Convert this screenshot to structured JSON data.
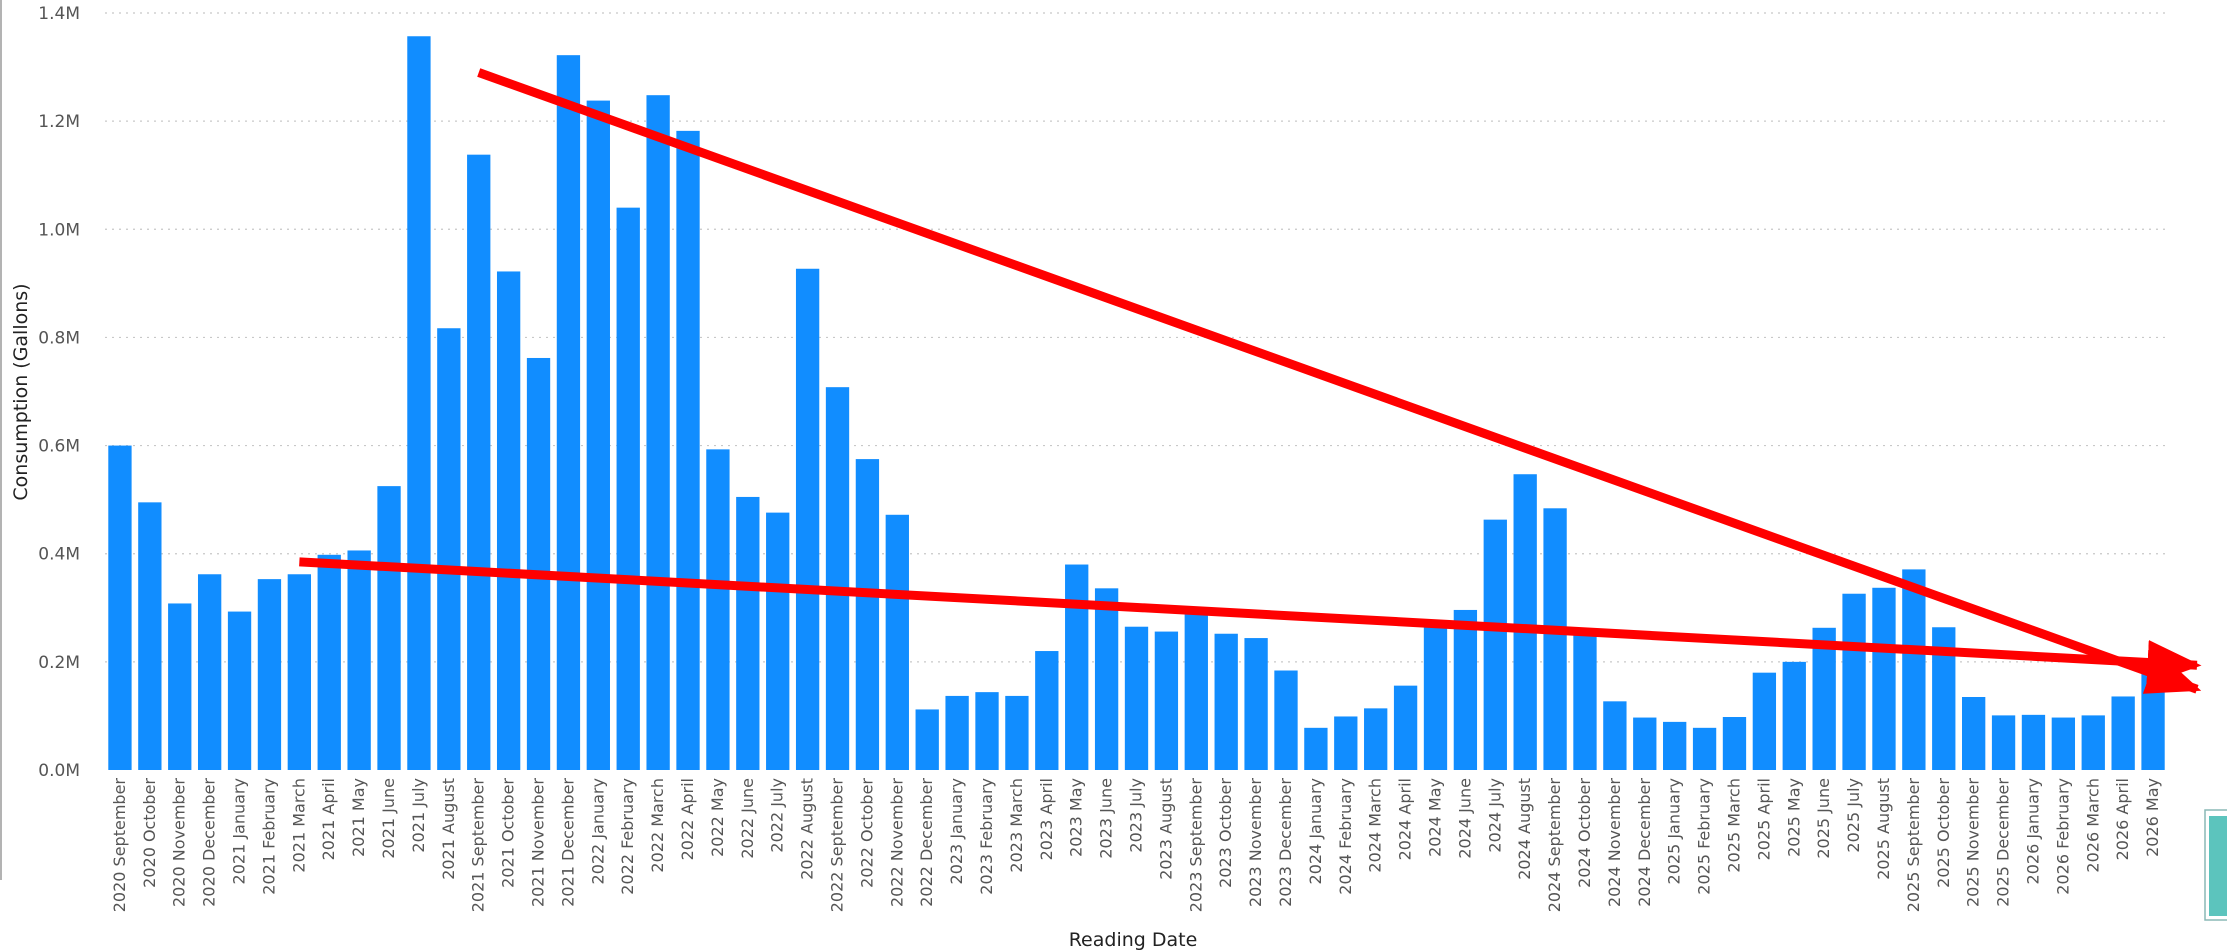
{
  "chart_data": {
    "type": "bar",
    "xlabel": "Reading Date",
    "ylabel": "Consumption (Gallons)",
    "ylim": [
      0,
      1400000
    ],
    "yticks": [
      {
        "value": 0,
        "label": "0.0M"
      },
      {
        "value": 200000,
        "label": "0.2M"
      },
      {
        "value": 400000,
        "label": "0.4M"
      },
      {
        "value": 600000,
        "label": "0.6M"
      },
      {
        "value": 800000,
        "label": "0.8M"
      },
      {
        "value": 1000000,
        "label": "1.0M"
      },
      {
        "value": 1200000,
        "label": "1.2M"
      },
      {
        "value": 1400000,
        "label": "1.4M"
      }
    ],
    "grid": true,
    "bar_color": "#118DFF",
    "categories": [
      "2020 September",
      "2020 October",
      "2020 November",
      "2020 December",
      "2021 January",
      "2021 February",
      "2021 March",
      "2021 April",
      "2021 May",
      "2021 June",
      "2021 July",
      "2021 August",
      "2021 September",
      "2021 October",
      "2021 November",
      "2021 December",
      "2022 January",
      "2022 February",
      "2022 March",
      "2022 April",
      "2022 May",
      "2022 June",
      "2022 July",
      "2022 August",
      "2022 September",
      "2022 October",
      "2022 November",
      "2022 December",
      "2023 January",
      "2023 February",
      "2023 March",
      "2023 April",
      "2023 May",
      "2023 June",
      "2023 July",
      "2023 August",
      "2023 September",
      "2023 October",
      "2023 November",
      "2023 December",
      "2024 January",
      "2024 February",
      "2024 March",
      "2024 April",
      "2024 May",
      "2024 June",
      "2024 July",
      "2024 August",
      "2024 September",
      "2024 October",
      "2024 November",
      "2024 December",
      "2025 January",
      "2025 February",
      "2025 March",
      "2025 April",
      "2025 May",
      "2025 June",
      "2025 July",
      "2025 August",
      "2025 September",
      "2025 October",
      "2025 November",
      "2025 December",
      "2026 January",
      "2026 February",
      "2026 March",
      "2026 April",
      "2026 May"
    ],
    "values": [
      600000,
      495000,
      308000,
      362000,
      293000,
      353000,
      362000,
      398000,
      406000,
      525000,
      1357000,
      817000,
      1138000,
      922000,
      762000,
      1322000,
      1238000,
      1040000,
      1248000,
      1182000,
      593000,
      505000,
      476000,
      927000,
      708000,
      575000,
      472000,
      112000,
      137000,
      144000,
      137000,
      220000,
      380000,
      336000,
      265000,
      256000,
      298000,
      252000,
      244000,
      184000,
      78000,
      99000,
      114000,
      156000,
      268000,
      296000,
      463000,
      547000,
      484000,
      260000,
      127000,
      97000,
      89000,
      78000,
      98000,
      180000,
      200000,
      263000,
      326000,
      337000,
      371000,
      264000,
      135000,
      101000,
      102000,
      97000,
      101000,
      136000,
      180000
    ],
    "annotations": [
      {
        "type": "arrow",
        "color": "#FF0000",
        "from": [
          "2021 September",
          1290000
        ],
        "to": [
          "2026 May",
          190000
        ],
        "extends_past_last": true
      },
      {
        "type": "arrow",
        "color": "#FF0000",
        "from": [
          "2021 March",
          385000
        ],
        "to": [
          "2026 May",
          200000
        ],
        "extends_past_last": true
      }
    ]
  }
}
